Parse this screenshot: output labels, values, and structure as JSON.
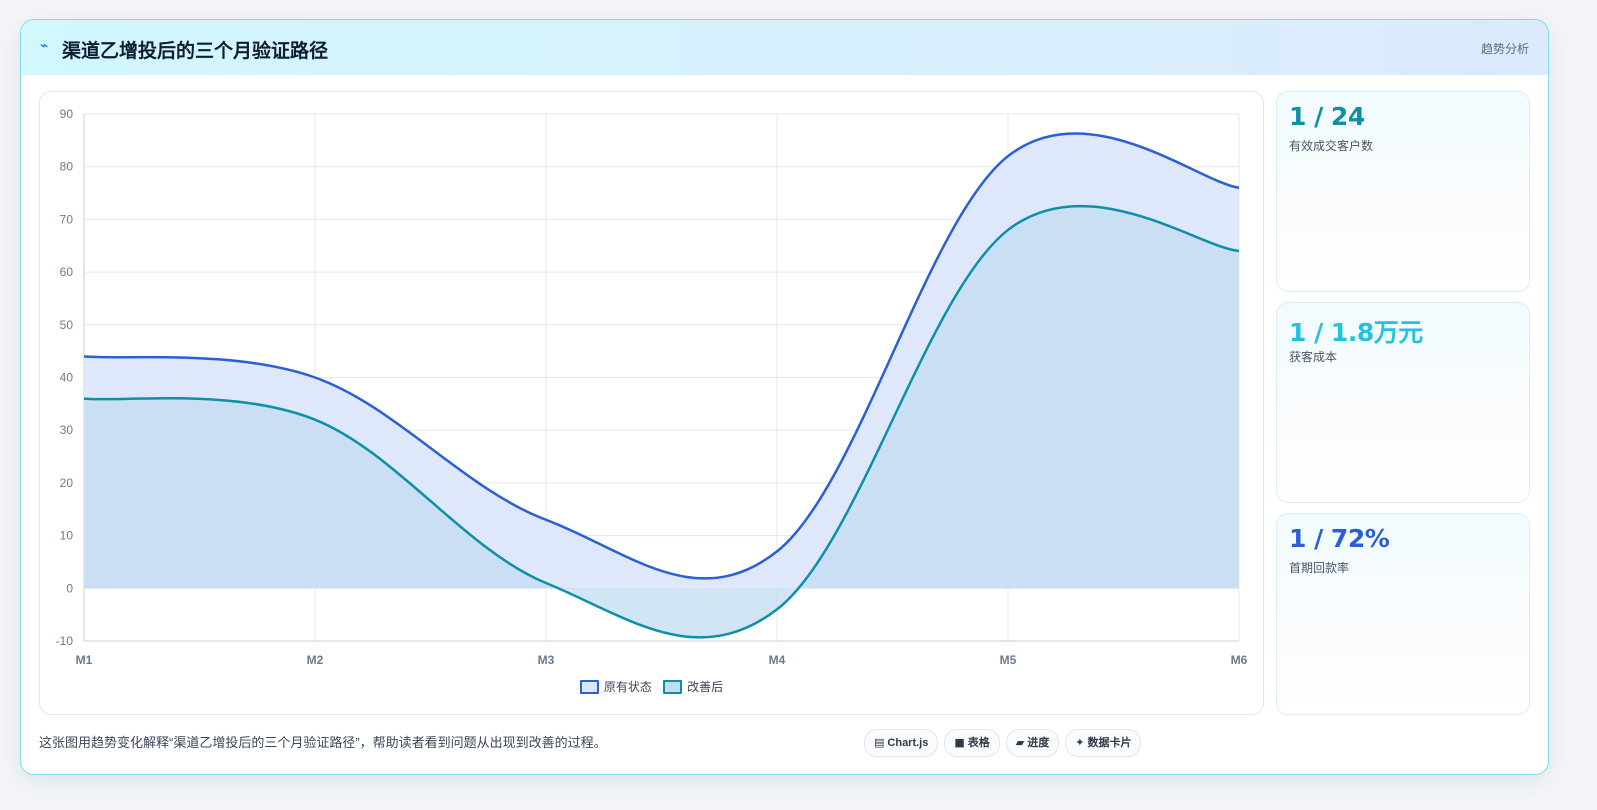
{
  "header": {
    "icon": "trend-icon",
    "title": "渠道乙增投后的三个月验证路径",
    "tag": "趋势分析"
  },
  "colors": {
    "series_a": "#2a5fd6",
    "series_b": "#0e8fa8",
    "fill_a": "#dbe6fb",
    "fill_b": "#c3dcf1"
  },
  "chart_data": {
    "type": "area",
    "x": [
      "M1",
      "M2",
      "M3",
      "M4",
      "M5",
      "M6"
    ],
    "ylim": [
      -10,
      90
    ],
    "yticks": [
      90,
      80,
      70,
      60,
      50,
      40,
      30,
      20,
      10,
      0,
      -10
    ],
    "grid": true,
    "legend": "bottom",
    "series": [
      {
        "name": "原有状态",
        "values": [
          44,
          40,
          13,
          7,
          82,
          76
        ]
      },
      {
        "name": "改善后",
        "values": [
          36,
          32,
          1,
          -4,
          68,
          64
        ]
      }
    ]
  },
  "kpis": [
    {
      "value": "1 / 24",
      "label": "有效成交客户数",
      "color": "#0e8fa8"
    },
    {
      "value": "1 / 1.8万元",
      "label": "获客成本",
      "color": "#22c3dd"
    },
    {
      "value": "1 / 72%",
      "label": "首期回款率",
      "color": "#2a5fd6"
    }
  ],
  "caption": "这张图用趋势变化解释“渠道乙增投后的三个月验证路径”，帮助读者看到问题从出现到改善的过程。",
  "pills": [
    {
      "icon": "▤",
      "label": "Chart.js"
    },
    {
      "icon": "■",
      "label": "表格"
    },
    {
      "icon": "▰",
      "label": "进度"
    },
    {
      "icon": "✦",
      "label": "数据卡片"
    }
  ]
}
